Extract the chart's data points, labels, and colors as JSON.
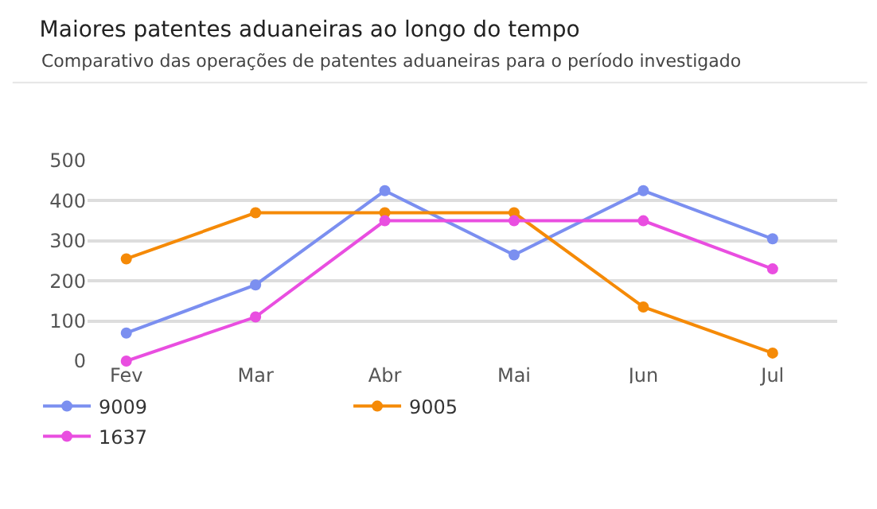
{
  "chart_data": {
    "type": "line",
    "title": "Maiores patentes aduaneiras ao longo do tempo",
    "subtitle": "Comparativo das operações de patentes aduaneiras para o período investigado",
    "categories": [
      "Fev",
      "Mar",
      "Abr",
      "Mai",
      "Jun",
      "Jul"
    ],
    "series": [
      {
        "name": "9009",
        "color": "#7b8ff0",
        "values": [
          70,
          190,
          425,
          265,
          425,
          305
        ]
      },
      {
        "name": "9005",
        "color": "#f58a07",
        "values": [
          255,
          370,
          370,
          370,
          135,
          20
        ]
      },
      {
        "name": "1637",
        "color": "#e94ee0",
        "values": [
          0,
          110,
          350,
          350,
          350,
          230
        ]
      }
    ],
    "ylim": [
      0,
      500
    ],
    "yticks": [
      0,
      100,
      200,
      300,
      400,
      500
    ],
    "grid": "y",
    "legend": "bottom",
    "marker": "circle",
    "line_style": "solid"
  }
}
